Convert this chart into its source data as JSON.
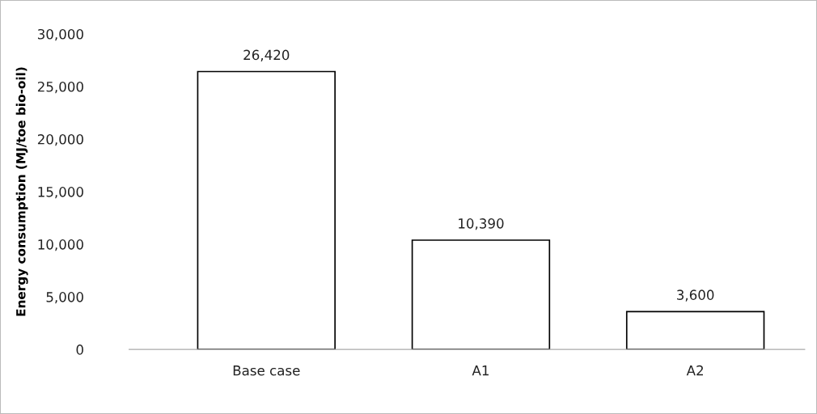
{
  "chart_data": {
    "type": "bar",
    "ylabel": "Energy consumption (MJ/toe bio-oil)",
    "categories": [
      "Base case",
      "A1",
      "A2"
    ],
    "values": [
      26420,
      10390,
      3600
    ],
    "value_labels": [
      "26,420",
      "10,390",
      "3,600"
    ],
    "color": "#ffffff",
    "ylim": [
      0,
      30000
    ],
    "yticks": [
      {
        "value": 0,
        "label": "0"
      },
      {
        "value": 5000,
        "label": "5,000"
      },
      {
        "value": 10000,
        "label": "10,000"
      },
      {
        "value": 15000,
        "label": "15,000"
      },
      {
        "value": 20000,
        "label": "20,000"
      },
      {
        "value": 25000,
        "label": "25,000"
      },
      {
        "value": 30000,
        "label": "30,000"
      }
    ],
    "grid": false
  }
}
